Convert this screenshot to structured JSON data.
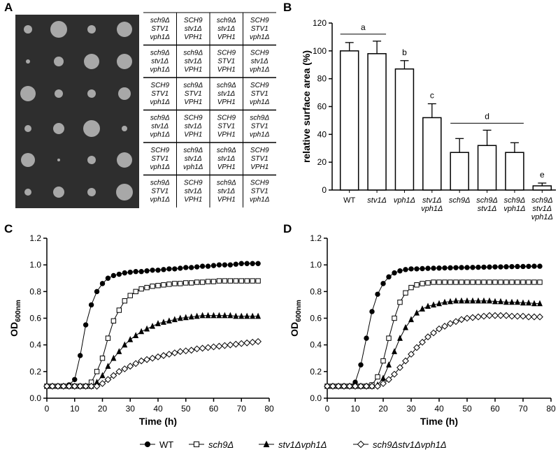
{
  "panel_a": {
    "label": "A",
    "table": {
      "rows": [
        [
          [
            "sch9Δ",
            "STV1",
            "vph1Δ"
          ],
          [
            "SCH9",
            "stv1Δ",
            "VPH1"
          ],
          [
            "sch9Δ",
            "stv1Δ",
            "VPH1"
          ],
          [
            "SCH9",
            "STV1",
            "vph1Δ"
          ]
        ],
        [
          [
            "sch9Δ",
            "stv1Δ",
            "vph1Δ"
          ],
          [
            "sch9Δ",
            "stv1Δ",
            "VPH1"
          ],
          [
            "SCH9",
            "STV1",
            "VPH1"
          ],
          [
            "SCH9",
            "stv1Δ",
            "vph1Δ"
          ]
        ],
        [
          [
            "SCH9",
            "STV1",
            "vph1Δ"
          ],
          [
            "sch9Δ",
            "STV1",
            "VPH1"
          ],
          [
            "sch9Δ",
            "stv1Δ",
            "VPH1"
          ],
          [
            "SCH9",
            "STV1",
            "vph1Δ"
          ]
        ],
        [
          [
            "sch9Δ",
            "stv1Δ",
            "vph1Δ"
          ],
          [
            "SCH9",
            "stv1Δ",
            "VPH1"
          ],
          [
            "SCH9",
            "STV1",
            "VPH1"
          ],
          [
            "sch9Δ",
            "STV1",
            "vph1Δ"
          ]
        ],
        [
          [
            "SCH9",
            "STV1",
            "vph1Δ"
          ],
          [
            "sch9Δ",
            "stv1Δ",
            "vph1Δ"
          ],
          [
            "sch9Δ",
            "stv1Δ",
            "VPH1"
          ],
          [
            "SCH9",
            "STV1",
            "VPH1"
          ]
        ],
        [
          [
            "sch9Δ",
            "STV1",
            "vph1Δ"
          ],
          [
            "SCH9",
            "stv1Δ",
            "VPH1"
          ],
          [
            "sch9Δ",
            "stv1Δ",
            "VPH1"
          ],
          [
            "SCH9",
            "STV1",
            "vph1Δ"
          ]
        ]
      ]
    }
  },
  "chart_data": [
    {
      "type": "bar",
      "panel": "B",
      "ylabel": "relative surface area (%)",
      "categories": [
        [
          "WT"
        ],
        [
          "stv1Δ"
        ],
        [
          "vph1Δ"
        ],
        [
          "stv1Δ",
          "vph1Δ"
        ],
        [
          "sch9Δ"
        ],
        [
          "sch9Δ",
          "stv1Δ"
        ],
        [
          "sch9Δ",
          "vph1Δ"
        ],
        [
          "sch9Δ",
          "stv1Δ",
          "vph1Δ"
        ]
      ],
      "values": [
        100,
        98,
        87,
        52,
        27,
        32,
        27,
        3
      ],
      "errors": [
        6,
        9,
        6,
        10,
        10,
        11,
        7,
        2
      ],
      "color": "#ffffff",
      "ylim": [
        0,
        120
      ],
      "yticks": [
        0,
        20,
        40,
        60,
        80,
        100,
        120
      ],
      "annotations": [
        {
          "label": "a",
          "from": 0,
          "to": 1
        },
        {
          "label": "b",
          "from": 2,
          "to": 2
        },
        {
          "label": "c",
          "from": 3,
          "to": 3
        },
        {
          "label": "d",
          "from": 4,
          "to": 6
        },
        {
          "label": "e",
          "from": 7,
          "to": 7
        }
      ]
    },
    {
      "type": "line",
      "panel": "C",
      "ylabel": "OD",
      "ylabel_sub": "600nm",
      "xlabel": "Time (h)",
      "xlim": [
        0,
        80
      ],
      "xticks": [
        0,
        10,
        20,
        30,
        40,
        50,
        60,
        70,
        80
      ],
      "ylim": [
        0,
        1.2
      ],
      "yticks": [
        {
          "value": 0,
          "label": "0.0"
        },
        0.2,
        0.4,
        0.6,
        0.8,
        {
          "value": 1,
          "label": "1.0"
        },
        1.2
      ],
      "x": [
        0,
        2,
        4,
        6,
        8,
        10,
        12,
        14,
        16,
        18,
        20,
        22,
        24,
        26,
        28,
        30,
        32,
        34,
        36,
        38,
        40,
        42,
        44,
        46,
        48,
        50,
        52,
        54,
        56,
        58,
        60,
        62,
        64,
        66,
        68,
        70,
        72,
        74,
        76
      ],
      "series": [
        {
          "name": "WT",
          "marker": "circle",
          "color": "#000000",
          "values": [
            0.09,
            0.09,
            0.09,
            0.09,
            0.1,
            0.14,
            0.32,
            0.55,
            0.7,
            0.8,
            0.86,
            0.9,
            0.92,
            0.93,
            0.94,
            0.945,
            0.95,
            0.95,
            0.955,
            0.96,
            0.96,
            0.965,
            0.97,
            0.97,
            0.975,
            0.98,
            0.98,
            0.985,
            0.99,
            0.99,
            0.995,
            1.0,
            1.0,
            1.0,
            1.005,
            1.01,
            1.01,
            1.01,
            1.01
          ]
        },
        {
          "name": "sch9Δ",
          "marker": "square",
          "color": "#000000",
          "values": [
            0.09,
            0.09,
            0.09,
            0.09,
            0.09,
            0.09,
            0.09,
            0.09,
            0.12,
            0.2,
            0.3,
            0.45,
            0.58,
            0.66,
            0.73,
            0.77,
            0.8,
            0.82,
            0.83,
            0.84,
            0.845,
            0.85,
            0.855,
            0.86,
            0.86,
            0.865,
            0.865,
            0.87,
            0.87,
            0.875,
            0.875,
            0.88,
            0.88,
            0.88,
            0.88,
            0.88,
            0.88,
            0.88,
            0.88
          ]
        },
        {
          "name": "stv1Δvph1Δ",
          "marker": "triangle",
          "color": "#000000",
          "values": [
            0.09,
            0.09,
            0.09,
            0.09,
            0.09,
            0.09,
            0.09,
            0.09,
            0.09,
            0.12,
            0.17,
            0.24,
            0.3,
            0.35,
            0.4,
            0.44,
            0.47,
            0.5,
            0.52,
            0.54,
            0.56,
            0.57,
            0.58,
            0.59,
            0.6,
            0.605,
            0.61,
            0.615,
            0.62,
            0.62,
            0.62,
            0.62,
            0.62,
            0.62,
            0.615,
            0.615,
            0.615,
            0.615,
            0.615
          ]
        },
        {
          "name": "sch9Δstv1Δvph1Δ",
          "marker": "diamond",
          "color": "#000000",
          "values": [
            0.09,
            0.09,
            0.09,
            0.09,
            0.09,
            0.09,
            0.09,
            0.09,
            0.09,
            0.09,
            0.11,
            0.14,
            0.17,
            0.2,
            0.22,
            0.24,
            0.26,
            0.28,
            0.29,
            0.3,
            0.31,
            0.32,
            0.33,
            0.34,
            0.35,
            0.355,
            0.36,
            0.37,
            0.375,
            0.38,
            0.385,
            0.39,
            0.395,
            0.4,
            0.405,
            0.41,
            0.415,
            0.42,
            0.425
          ]
        }
      ]
    },
    {
      "type": "line",
      "panel": "D",
      "ylabel": "OD",
      "ylabel_sub": "600nm",
      "xlabel": "Time (h)",
      "xlim": [
        0,
        80
      ],
      "xticks": [
        0,
        10,
        20,
        30,
        40,
        50,
        60,
        70,
        80
      ],
      "ylim": [
        0,
        1.2
      ],
      "yticks": [
        {
          "value": 0,
          "label": "0.0"
        },
        0.2,
        0.4,
        0.6,
        0.8,
        {
          "value": 1,
          "label": "1.0"
        },
        1.2
      ],
      "x": [
        0,
        2,
        4,
        6,
        8,
        10,
        12,
        14,
        16,
        18,
        20,
        22,
        24,
        26,
        28,
        30,
        32,
        34,
        36,
        38,
        40,
        42,
        44,
        46,
        48,
        50,
        52,
        54,
        56,
        58,
        60,
        62,
        64,
        66,
        68,
        70,
        72,
        74,
        76
      ],
      "series": [
        {
          "marker": "circle",
          "color": "#000000",
          "values": [
            0.09,
            0.09,
            0.09,
            0.09,
            0.09,
            0.12,
            0.25,
            0.45,
            0.65,
            0.78,
            0.86,
            0.91,
            0.94,
            0.955,
            0.965,
            0.97,
            0.97,
            0.972,
            0.974,
            0.975,
            0.976,
            0.977,
            0.978,
            0.979,
            0.98,
            0.98,
            0.981,
            0.982,
            0.983,
            0.984,
            0.985,
            0.985,
            0.986,
            0.987,
            0.988,
            0.988,
            0.989,
            0.99,
            0.99
          ]
        },
        {
          "marker": "square",
          "color": "#000000",
          "values": [
            0.09,
            0.09,
            0.09,
            0.09,
            0.09,
            0.09,
            0.09,
            0.09,
            0.1,
            0.16,
            0.28,
            0.45,
            0.6,
            0.72,
            0.79,
            0.83,
            0.85,
            0.86,
            0.865,
            0.87,
            0.87,
            0.87,
            0.87,
            0.87,
            0.87,
            0.87,
            0.87,
            0.87,
            0.87,
            0.87,
            0.87,
            0.87,
            0.87,
            0.87,
            0.87,
            0.87,
            0.87,
            0.87,
            0.87
          ]
        },
        {
          "marker": "triangle",
          "color": "#000000",
          "values": [
            0.09,
            0.09,
            0.09,
            0.09,
            0.09,
            0.09,
            0.09,
            0.09,
            0.09,
            0.1,
            0.15,
            0.25,
            0.35,
            0.45,
            0.53,
            0.59,
            0.64,
            0.67,
            0.69,
            0.7,
            0.71,
            0.72,
            0.725,
            0.73,
            0.73,
            0.73,
            0.73,
            0.73,
            0.73,
            0.73,
            0.725,
            0.725,
            0.72,
            0.72,
            0.72,
            0.715,
            0.715,
            0.71,
            0.71
          ]
        },
        {
          "marker": "diamond",
          "color": "#000000",
          "values": [
            0.09,
            0.09,
            0.09,
            0.09,
            0.09,
            0.09,
            0.09,
            0.09,
            0.09,
            0.09,
            0.11,
            0.14,
            0.18,
            0.23,
            0.28,
            0.33,
            0.38,
            0.42,
            0.46,
            0.49,
            0.52,
            0.54,
            0.56,
            0.575,
            0.59,
            0.6,
            0.605,
            0.61,
            0.615,
            0.62,
            0.62,
            0.62,
            0.62,
            0.615,
            0.615,
            0.615,
            0.61,
            0.61,
            0.61
          ]
        }
      ]
    }
  ]
}
